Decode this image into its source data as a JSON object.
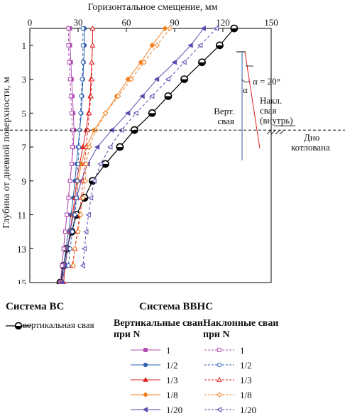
{
  "chart_data": {
    "type": "line",
    "xlabel": "Горизонтальное смещение, мм",
    "ylabel": "Глубина от дневной поверхности, м",
    "xlim": [
      0,
      150
    ],
    "ylim": [
      15,
      0
    ],
    "x_axis_position": "top",
    "y_reversed": true,
    "x_ticks": [
      0,
      30,
      60,
      90,
      120,
      150
    ],
    "y_ticks": [
      1,
      3,
      5,
      7,
      9,
      11,
      13,
      15
    ],
    "grid": false,
    "series": [
      {
        "name": "вертикальная свая",
        "group": "bc",
        "color": "#000000",
        "marker": "circle-half",
        "dash": "solid",
        "x": [
          127,
          118,
          107,
          96,
          86,
          76,
          65,
          56,
          47,
          39,
          34,
          29,
          26,
          23,
          21,
          19
        ],
        "y": [
          0,
          1,
          2,
          3,
          4,
          5,
          6,
          7,
          8,
          9,
          10,
          11,
          12,
          13,
          14,
          15
        ]
      },
      {
        "name": "1",
        "group": "vert",
        "color": "#b04ab0",
        "marker": "square",
        "dash": "solid",
        "x": [
          25,
          25,
          25.5,
          26,
          26.5,
          27,
          27.5,
          27,
          26,
          25,
          24,
          23,
          22,
          21,
          20,
          19
        ],
        "y": [
          0,
          1,
          2,
          3,
          4,
          5,
          6,
          7,
          8,
          9,
          10,
          11,
          12,
          13,
          14,
          15
        ]
      },
      {
        "name": "1/2",
        "group": "vert",
        "color": "#2b5fb0",
        "marker": "circle",
        "dash": "solid",
        "x": [
          34,
          34,
          33.5,
          33,
          32.5,
          32,
          31,
          30,
          29,
          28,
          27,
          25.5,
          24,
          22.5,
          21,
          20
        ],
        "y": [
          0,
          1,
          2,
          3,
          4,
          5,
          6,
          7,
          8,
          9,
          10,
          11,
          12,
          13,
          14,
          15
        ]
      },
      {
        "name": "1/3",
        "group": "vert",
        "color": "#e02020",
        "marker": "triangle",
        "dash": "solid",
        "x": [
          39,
          39,
          38.5,
          38,
          37.5,
          36.5,
          35,
          33,
          31,
          29,
          28,
          26.5,
          25,
          23.5,
          22,
          21
        ],
        "y": [
          0,
          1,
          2,
          3,
          4,
          5,
          6,
          7,
          8,
          9,
          10,
          11,
          12,
          13,
          14,
          15
        ]
      },
      {
        "name": "1/8",
        "group": "vert",
        "color": "#f08020",
        "marker": "diamond",
        "dash": "solid",
        "x": [
          84,
          76,
          69,
          61,
          54,
          47,
          40,
          35,
          32,
          30,
          29,
          27,
          25,
          23.5,
          22,
          20
        ],
        "y": [
          0,
          1,
          2,
          3,
          4,
          5,
          6,
          7,
          8,
          9,
          10,
          11,
          12,
          13,
          14,
          15
        ]
      },
      {
        "name": "1/20",
        "group": "vert",
        "color": "#5a4ab0",
        "marker": "triangle-left",
        "dash": "solid",
        "x": [
          108,
          100,
          90,
          79,
          70,
          61,
          51,
          42,
          36,
          32,
          29,
          27,
          25,
          23.5,
          22,
          20
        ],
        "y": [
          0,
          1,
          2,
          3,
          4,
          5,
          6,
          7,
          8,
          9,
          10,
          11,
          12,
          13,
          14,
          15
        ]
      },
      {
        "name": "1",
        "group": "incl",
        "color": "#b04ab0",
        "marker": "square-open",
        "dash": "dashed",
        "x": [
          24,
          24,
          24.5,
          25,
          25.5,
          26,
          26.5,
          26.5,
          26,
          25,
          24,
          23,
          22,
          21,
          20
        ],
        "y": [
          0,
          1,
          2,
          3,
          4,
          5,
          6,
          7,
          8,
          9,
          10,
          11,
          12,
          13,
          14
        ]
      },
      {
        "name": "1/2",
        "group": "incl",
        "color": "#2b5fb0",
        "marker": "circle-open",
        "dash": "dashed",
        "x": [
          33,
          33,
          33,
          32.5,
          32,
          31.5,
          31,
          30.5,
          30,
          29.5,
          29,
          28,
          26.5,
          25,
          24
        ],
        "y": [
          0,
          1,
          2,
          3,
          4,
          5,
          6,
          7,
          8,
          9,
          10,
          11,
          12,
          13,
          14
        ]
      },
      {
        "name": "1/3",
        "group": "incl",
        "color": "#e02020",
        "marker": "triangle-open",
        "dash": "dashed",
        "x": [
          39,
          39,
          38.5,
          38.5,
          38,
          37,
          36,
          35,
          34,
          33,
          32,
          31,
          29.5,
          28,
          26.5
        ],
        "y": [
          0,
          1,
          2,
          3,
          4,
          5,
          6,
          7,
          8,
          9,
          10,
          11,
          12,
          13,
          14
        ]
      },
      {
        "name": "1/8",
        "group": "incl",
        "color": "#f08020",
        "marker": "diamond-open",
        "dash": "dashed",
        "x": [
          87,
          79,
          71,
          63,
          55,
          47,
          41,
          37,
          35,
          34.5,
          33,
          31.5,
          30,
          28,
          27
        ],
        "y": [
          0,
          1,
          2,
          3,
          4,
          5,
          6,
          7,
          8,
          9,
          10,
          11,
          12,
          13,
          14
        ]
      },
      {
        "name": "1/20",
        "group": "incl",
        "color": "#5a4ab0",
        "marker": "triangle-left-open",
        "dash": "dashed",
        "x": [
          116,
          106,
          96,
          86,
          76,
          66,
          57,
          50,
          44,
          40,
          38,
          36.5,
          35,
          34,
          33
        ],
        "y": [
          0,
          1,
          2,
          3,
          4,
          5,
          6,
          7,
          8,
          9,
          10,
          11,
          12,
          13,
          14
        ]
      }
    ],
    "annotations": {
      "alpha": "α = 20°",
      "alpha_symbol": "α",
      "vert_pile": [
        "Верт.",
        "свая"
      ],
      "incl_pile": [
        "Накл.",
        "свая",
        "(внутрь)"
      ],
      "bottom": [
        "Дно",
        "котлована"
      ]
    }
  },
  "legend": {
    "system_bc": "Система ВС",
    "system_bbhc": "Система ВВНС",
    "vertical_pile_label": "вертикальная свая",
    "vertical_head": "Вертикальные сваи при N",
    "inclined_head": "Наклонные сваи при N",
    "ratios": [
      "1",
      "1/2",
      "1/3",
      "1/8",
      "1/20"
    ]
  }
}
